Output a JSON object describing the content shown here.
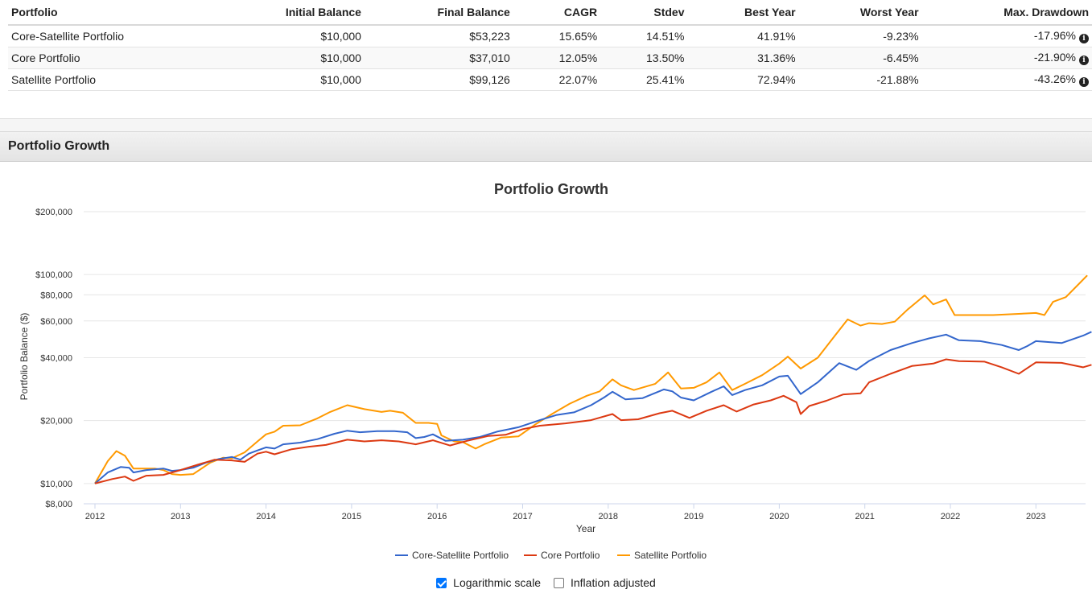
{
  "summary_table": {
    "headers": [
      "Portfolio",
      "Initial Balance",
      "Final Balance",
      "CAGR",
      "Stdev",
      "Best Year",
      "Worst Year",
      "Max. Drawdown"
    ],
    "rows": [
      [
        "Core-Satellite Portfolio",
        "$10,000",
        "$53,223",
        "15.65%",
        "14.51%",
        "41.91%",
        "-9.23%",
        "-17.96%"
      ],
      [
        "Core Portfolio",
        "$10,000",
        "$37,010",
        "12.05%",
        "13.50%",
        "31.36%",
        "-6.45%",
        "-21.90%"
      ],
      [
        "Satellite Portfolio",
        "$10,000",
        "$99,126",
        "22.07%",
        "25.41%",
        "72.94%",
        "-21.88%",
        "-43.26%"
      ]
    ],
    "info_icon": "info-circle-icon"
  },
  "section": {
    "title": "Portfolio Growth"
  },
  "chart_data": {
    "type": "line",
    "title": "Portfolio Growth",
    "xlabel": "Year",
    "ylabel": "Portfolio Balance ($)",
    "yscale": "log",
    "ylim": [
      8000,
      200000
    ],
    "xlim": [
      2012,
      2023.6
    ],
    "y_ticks": [
      8000,
      10000,
      20000,
      40000,
      60000,
      80000,
      100000,
      200000
    ],
    "y_tick_labels": [
      "$8,000",
      "$10,000",
      "$20,000",
      "$40,000",
      "$60,000",
      "$80,000",
      "$100,000",
      "$200,000"
    ],
    "x_ticks": [
      2012,
      2013,
      2014,
      2015,
      2016,
      2017,
      2018,
      2019,
      2020,
      2021,
      2022,
      2023
    ],
    "x_tick_labels": [
      "2012",
      "2013",
      "2014",
      "2015",
      "2016",
      "2017",
      "2018",
      "2019",
      "2020",
      "2021",
      "2022",
      "2023"
    ],
    "legend_position": "bottom-center",
    "series": [
      {
        "name": "Core-Satellite Portfolio",
        "color": "#3366cc",
        "points": [
          [
            2012.0,
            10000
          ],
          [
            2012.15,
            11300
          ],
          [
            2012.3,
            12000
          ],
          [
            2012.4,
            11900
          ],
          [
            2012.45,
            11300
          ],
          [
            2012.6,
            11600
          ],
          [
            2012.8,
            11800
          ],
          [
            2012.9,
            11500
          ],
          [
            2013.0,
            11600
          ],
          [
            2013.15,
            11900
          ],
          [
            2013.3,
            12600
          ],
          [
            2013.45,
            13100
          ],
          [
            2013.6,
            13400
          ],
          [
            2013.7,
            13000
          ],
          [
            2013.8,
            13900
          ],
          [
            2013.9,
            14400
          ],
          [
            2014.0,
            14900
          ],
          [
            2014.1,
            14700
          ],
          [
            2014.2,
            15400
          ],
          [
            2014.4,
            15700
          ],
          [
            2014.6,
            16300
          ],
          [
            2014.8,
            17300
          ],
          [
            2014.95,
            17900
          ],
          [
            2015.1,
            17600
          ],
          [
            2015.3,
            17800
          ],
          [
            2015.5,
            17800
          ],
          [
            2015.65,
            17600
          ],
          [
            2015.75,
            16500
          ],
          [
            2015.85,
            16700
          ],
          [
            2015.95,
            17200
          ],
          [
            2016.1,
            16000
          ],
          [
            2016.3,
            16200
          ],
          [
            2016.5,
            16700
          ],
          [
            2016.7,
            17700
          ],
          [
            2016.95,
            18600
          ],
          [
            2017.2,
            20100
          ],
          [
            2017.4,
            21300
          ],
          [
            2017.6,
            21900
          ],
          [
            2017.8,
            23700
          ],
          [
            2017.95,
            25800
          ],
          [
            2018.05,
            27500
          ],
          [
            2018.2,
            25300
          ],
          [
            2018.4,
            25600
          ],
          [
            2018.65,
            28200
          ],
          [
            2018.75,
            27600
          ],
          [
            2018.85,
            25800
          ],
          [
            2019.0,
            25000
          ],
          [
            2019.2,
            27400
          ],
          [
            2019.35,
            29200
          ],
          [
            2019.45,
            26500
          ],
          [
            2019.6,
            28000
          ],
          [
            2019.8,
            29500
          ],
          [
            2020.0,
            32500
          ],
          [
            2020.1,
            32800
          ],
          [
            2020.25,
            26800
          ],
          [
            2020.45,
            30500
          ],
          [
            2020.7,
            37700
          ],
          [
            2020.9,
            35000
          ],
          [
            2021.05,
            38600
          ],
          [
            2021.3,
            43500
          ],
          [
            2021.55,
            47000
          ],
          [
            2021.75,
            49500
          ],
          [
            2021.95,
            51600
          ],
          [
            2022.1,
            48500
          ],
          [
            2022.35,
            48000
          ],
          [
            2022.6,
            46000
          ],
          [
            2022.8,
            43500
          ],
          [
            2022.9,
            45500
          ],
          [
            2023.0,
            48000
          ],
          [
            2023.3,
            47000
          ],
          [
            2023.55,
            51000
          ],
          [
            2023.65,
            53223
          ]
        ]
      },
      {
        "name": "Core Portfolio",
        "color": "#dc3912",
        "points": [
          [
            2012.0,
            10000
          ],
          [
            2012.2,
            10500
          ],
          [
            2012.35,
            10800
          ],
          [
            2012.45,
            10300
          ],
          [
            2012.6,
            10900
          ],
          [
            2012.8,
            11000
          ],
          [
            2013.0,
            11600
          ],
          [
            2013.2,
            12300
          ],
          [
            2013.4,
            13000
          ],
          [
            2013.6,
            12900
          ],
          [
            2013.75,
            12700
          ],
          [
            2013.9,
            13900
          ],
          [
            2014.0,
            14200
          ],
          [
            2014.1,
            13800
          ],
          [
            2014.3,
            14600
          ],
          [
            2014.5,
            15000
          ],
          [
            2014.7,
            15300
          ],
          [
            2014.95,
            16200
          ],
          [
            2015.15,
            15900
          ],
          [
            2015.35,
            16100
          ],
          [
            2015.55,
            15900
          ],
          [
            2015.75,
            15400
          ],
          [
            2015.95,
            16100
          ],
          [
            2016.15,
            15200
          ],
          [
            2016.35,
            16000
          ],
          [
            2016.6,
            16900
          ],
          [
            2016.8,
            17100
          ],
          [
            2017.0,
            18200
          ],
          [
            2017.2,
            18900
          ],
          [
            2017.5,
            19400
          ],
          [
            2017.8,
            20100
          ],
          [
            2018.05,
            21500
          ],
          [
            2018.15,
            20100
          ],
          [
            2018.35,
            20300
          ],
          [
            2018.6,
            21700
          ],
          [
            2018.75,
            22300
          ],
          [
            2018.95,
            20600
          ],
          [
            2019.15,
            22300
          ],
          [
            2019.35,
            23700
          ],
          [
            2019.5,
            22100
          ],
          [
            2019.7,
            23900
          ],
          [
            2019.9,
            25000
          ],
          [
            2020.05,
            26300
          ],
          [
            2020.2,
            24500
          ],
          [
            2020.25,
            21500
          ],
          [
            2020.35,
            23500
          ],
          [
            2020.55,
            24900
          ],
          [
            2020.75,
            26700
          ],
          [
            2020.95,
            27000
          ],
          [
            2021.05,
            30500
          ],
          [
            2021.3,
            33500
          ],
          [
            2021.55,
            36500
          ],
          [
            2021.8,
            37500
          ],
          [
            2021.95,
            39300
          ],
          [
            2022.1,
            38500
          ],
          [
            2022.4,
            38300
          ],
          [
            2022.6,
            36000
          ],
          [
            2022.8,
            33500
          ],
          [
            2023.0,
            38000
          ],
          [
            2023.3,
            37800
          ],
          [
            2023.55,
            36000
          ],
          [
            2023.65,
            37010
          ]
        ]
      },
      {
        "name": "Satellite Portfolio",
        "color": "#ff9900",
        "points": [
          [
            2012.0,
            10000
          ],
          [
            2012.15,
            12800
          ],
          [
            2012.25,
            14300
          ],
          [
            2012.35,
            13600
          ],
          [
            2012.45,
            11800
          ],
          [
            2012.7,
            11800
          ],
          [
            2012.8,
            11600
          ],
          [
            2012.9,
            11100
          ],
          [
            2013.0,
            11000
          ],
          [
            2013.15,
            11100
          ],
          [
            2013.35,
            12600
          ],
          [
            2013.5,
            13300
          ],
          [
            2013.6,
            13200
          ],
          [
            2013.75,
            14100
          ],
          [
            2013.9,
            15900
          ],
          [
            2014.0,
            17200
          ],
          [
            2014.1,
            17700
          ],
          [
            2014.2,
            18900
          ],
          [
            2014.4,
            19000
          ],
          [
            2014.6,
            20500
          ],
          [
            2014.75,
            22000
          ],
          [
            2014.95,
            23700
          ],
          [
            2015.15,
            22700
          ],
          [
            2015.35,
            22000
          ],
          [
            2015.45,
            22300
          ],
          [
            2015.6,
            21800
          ],
          [
            2015.75,
            19500
          ],
          [
            2015.9,
            19500
          ],
          [
            2016.0,
            19300
          ],
          [
            2016.05,
            17000
          ],
          [
            2016.2,
            15900
          ],
          [
            2016.3,
            15800
          ],
          [
            2016.45,
            14700
          ],
          [
            2016.55,
            15400
          ],
          [
            2016.75,
            16600
          ],
          [
            2016.95,
            16800
          ],
          [
            2017.15,
            19200
          ],
          [
            2017.35,
            21600
          ],
          [
            2017.55,
            24100
          ],
          [
            2017.75,
            26300
          ],
          [
            2017.9,
            27600
          ],
          [
            2018.05,
            31500
          ],
          [
            2018.15,
            29500
          ],
          [
            2018.3,
            28000
          ],
          [
            2018.55,
            30000
          ],
          [
            2018.7,
            34000
          ],
          [
            2018.85,
            28500
          ],
          [
            2019.0,
            28700
          ],
          [
            2019.15,
            30500
          ],
          [
            2019.3,
            34000
          ],
          [
            2019.45,
            28000
          ],
          [
            2019.6,
            30000
          ],
          [
            2019.8,
            33000
          ],
          [
            2020.0,
            37500
          ],
          [
            2020.1,
            40500
          ],
          [
            2020.25,
            35500
          ],
          [
            2020.45,
            40000
          ],
          [
            2020.65,
            51000
          ],
          [
            2020.8,
            61000
          ],
          [
            2020.95,
            57000
          ],
          [
            2021.05,
            58500
          ],
          [
            2021.2,
            58000
          ],
          [
            2021.35,
            59500
          ],
          [
            2021.5,
            68000
          ],
          [
            2021.7,
            79500
          ],
          [
            2021.8,
            72000
          ],
          [
            2021.95,
            76000
          ],
          [
            2022.05,
            64000
          ],
          [
            2022.5,
            64000
          ],
          [
            2023.0,
            65500
          ],
          [
            2023.1,
            64000
          ],
          [
            2023.2,
            74000
          ],
          [
            2023.35,
            78000
          ],
          [
            2023.5,
            90000
          ],
          [
            2023.6,
            99126
          ]
        ]
      }
    ]
  },
  "options": [
    {
      "label": "Logarithmic scale",
      "checked": true
    },
    {
      "label": "Inflation adjusted",
      "checked": false
    }
  ]
}
